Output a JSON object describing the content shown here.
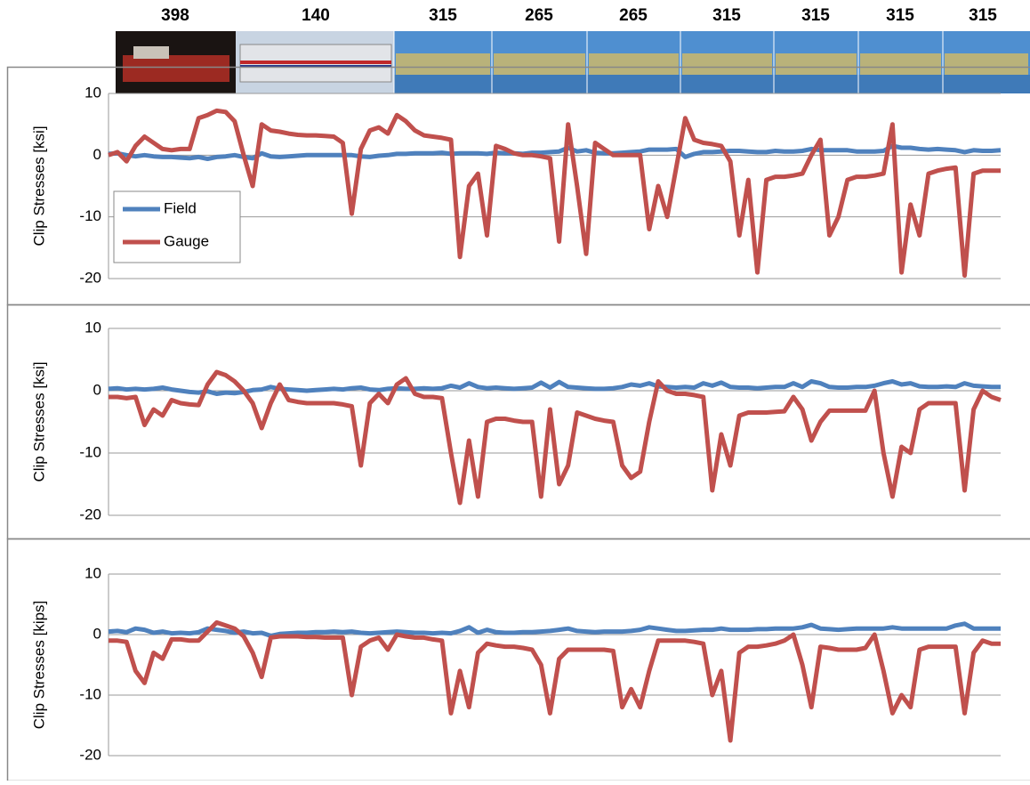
{
  "car_loads": [
    398,
    140,
    315,
    265,
    265,
    315,
    315,
    315,
    315
  ],
  "chart_data": [
    {
      "type": "line",
      "y_label": "Clip Stresses [ksi]",
      "ylim": [
        -20,
        10
      ],
      "yticks": [
        10,
        0,
        -10,
        -20
      ],
      "grid": true,
      "legend": "left",
      "series": [
        {
          "name": "Field",
          "color": "#4f81bd",
          "values": [
            0.2,
            0.3,
            0,
            -0.2,
            0,
            -0.2,
            -0.3,
            -0.3,
            -0.4,
            -0.5,
            -0.3,
            -0.6,
            -0.3,
            -0.2,
            0,
            -0.3,
            -0.5,
            0.3,
            -0.2,
            -0.3,
            -0.2,
            -0.1,
            0,
            0,
            0,
            0,
            0,
            0,
            -0.2,
            -0.3,
            -0.1,
            0,
            0.2,
            0.2,
            0.3,
            0.3,
            0.3,
            0.4,
            0.2,
            0.3,
            0.3,
            0.3,
            0.2,
            0.4,
            0.3,
            0.3,
            0.2,
            0.4,
            0.4,
            0.5,
            0.6,
            1.2,
            0.6,
            0.8,
            0.4,
            0.3,
            0.3,
            0.4,
            0.5,
            0.6,
            0.9,
            0.9,
            0.9,
            1,
            -0.3,
            0.2,
            0.5,
            0.5,
            0.6,
            0.7,
            0.7,
            0.6,
            0.5,
            0.5,
            0.7,
            0.6,
            0.6,
            0.7,
            1,
            0.8,
            0.8,
            0.8,
            0.8,
            0.6,
            0.6,
            0.6,
            0.7,
            1.5,
            1.2,
            1.2,
            1,
            0.9,
            1,
            0.9,
            0.8,
            0.5,
            0.8,
            0.7,
            0.7,
            0.8
          ]
        },
        {
          "name": "Gauge",
          "color": "#c0504d",
          "values": [
            0,
            0.5,
            -1,
            1.5,
            3,
            2,
            1,
            0.8,
            1,
            1,
            6,
            6.5,
            7.2,
            7,
            5.5,
            0,
            -5,
            5,
            4,
            3.8,
            3.5,
            3.3,
            3.2,
            3.2,
            3.1,
            3,
            2,
            -9.5,
            1,
            4,
            4.5,
            3.5,
            6.5,
            5.5,
            4,
            3.2,
            3,
            2.8,
            2.5,
            -16.5,
            -5,
            -3,
            -13,
            1.5,
            1,
            0.3,
            0,
            0,
            -0.2,
            -0.5,
            -14,
            5,
            -5,
            -16,
            2,
            1,
            0,
            0,
            0,
            0,
            -12,
            -5,
            -10,
            -2,
            6,
            2.5,
            2,
            1.8,
            1.5,
            -1,
            -13,
            -4,
            -19,
            -4,
            -3.5,
            -3.5,
            -3.3,
            -3,
            0,
            2.5,
            -13,
            -10,
            -4,
            -3.5,
            -3.5,
            -3.3,
            -3,
            5,
            -19,
            -8,
            -13,
            -3,
            -2.5,
            -2.2,
            -2,
            -19.5,
            -3,
            -2.5,
            -2.5,
            -2.5
          ]
        }
      ]
    },
    {
      "type": "line",
      "y_label": "Clip Stresses [ksi]",
      "ylim": [
        -20,
        10
      ],
      "yticks": [
        10,
        0,
        -10,
        -20
      ],
      "grid": true,
      "series": [
        {
          "name": "Field",
          "color": "#4f81bd",
          "values": [
            0.3,
            0.4,
            0.2,
            0.3,
            0.2,
            0.3,
            0.5,
            0.2,
            0,
            -0.2,
            -0.3,
            -0.1,
            -0.5,
            -0.3,
            -0.4,
            -0.2,
            0.1,
            0.2,
            0.6,
            0.3,
            0.2,
            0.1,
            0,
            0.1,
            0.2,
            0.3,
            0.2,
            0.4,
            0.5,
            0.2,
            0.1,
            0.3,
            0.4,
            0.3,
            0.3,
            0.4,
            0.3,
            0.4,
            0.8,
            0.5,
            1.2,
            0.6,
            0.4,
            0.5,
            0.4,
            0.3,
            0.4,
            0.5,
            1.3,
            0.5,
            1.4,
            0.6,
            0.5,
            0.4,
            0.3,
            0.3,
            0.4,
            0.6,
            1,
            0.8,
            1.2,
            0.7,
            0.6,
            0.5,
            0.6,
            0.5,
            1.2,
            0.8,
            1.3,
            0.6,
            0.5,
            0.5,
            0.4,
            0.5,
            0.6,
            0.6,
            1.2,
            0.6,
            1.5,
            1.2,
            0.6,
            0.5,
            0.5,
            0.6,
            0.6,
            0.8,
            1.2,
            1.5,
            1,
            1.2,
            0.7,
            0.6,
            0.6,
            0.7,
            0.6,
            1.2,
            0.8,
            0.7,
            0.6,
            0.6
          ]
        },
        {
          "name": "Gauge",
          "color": "#c0504d",
          "values": [
            -1,
            -1,
            -1.2,
            -1,
            -5.5,
            -3,
            -4,
            -1.5,
            -2,
            -2.2,
            -2.3,
            1,
            3,
            2.5,
            1.5,
            0,
            -2,
            -6,
            -2,
            1,
            -1.5,
            -1.8,
            -2,
            -2,
            -2,
            -2,
            -2.2,
            -2.5,
            -12,
            -2,
            -0.5,
            -2,
            1,
            2,
            -0.5,
            -1,
            -1,
            -1.2,
            -10,
            -18,
            -8,
            -17,
            -5,
            -4.5,
            -4.5,
            -4.8,
            -5,
            -5,
            -17,
            -3,
            -15,
            -12,
            -3.5,
            -4,
            -4.5,
            -4.8,
            -5,
            -12,
            -14,
            -13,
            -5,
            1.5,
            0,
            -0.5,
            -0.5,
            -0.7,
            -1,
            -16,
            -7,
            -12,
            -4,
            -3.5,
            -3.5,
            -3.5,
            -3.4,
            -3.3,
            -1,
            -3,
            -8,
            -5,
            -3.2,
            -3.2,
            -3.2,
            -3.2,
            -3.2,
            0,
            -10,
            -17,
            -9,
            -10,
            -3,
            -2,
            -2,
            -2,
            -2,
            -16,
            -3,
            0,
            -1,
            -1.5
          ]
        }
      ]
    },
    {
      "type": "line",
      "y_label": "Clip Stresses [kips]",
      "ylim": [
        -20,
        10
      ],
      "yticks": [
        10,
        0,
        -10,
        -20
      ],
      "grid": true,
      "series": [
        {
          "name": "Field",
          "color": "#4f81bd",
          "values": [
            0.5,
            0.6,
            0.4,
            1,
            0.8,
            0.3,
            0.5,
            0.2,
            0.3,
            0.2,
            0.4,
            1,
            0.8,
            0.6,
            0.3,
            0.5,
            0.2,
            0.3,
            -0.2,
            0.1,
            0.2,
            0.3,
            0.3,
            0.4,
            0.4,
            0.5,
            0.4,
            0.5,
            0.3,
            0.2,
            0.3,
            0.4,
            0.5,
            0.4,
            0.3,
            0.3,
            0.2,
            0.3,
            0.2,
            0.6,
            1.2,
            0.3,
            0.8,
            0.4,
            0.3,
            0.3,
            0.4,
            0.4,
            0.5,
            0.6,
            0.8,
            1,
            0.6,
            0.5,
            0.4,
            0.5,
            0.5,
            0.5,
            0.6,
            0.8,
            1.2,
            1,
            0.8,
            0.6,
            0.6,
            0.7,
            0.8,
            0.8,
            1,
            0.8,
            0.8,
            0.8,
            0.9,
            0.9,
            1,
            1,
            1,
            1.2,
            1.6,
            1,
            0.9,
            0.8,
            0.9,
            1,
            1,
            1,
            1,
            1.2,
            1,
            1,
            1,
            1,
            1,
            1,
            1.5,
            1.8,
            1,
            1,
            1,
            1
          ]
        },
        {
          "name": "Gauge",
          "color": "#c0504d",
          "values": [
            -1,
            -1,
            -1.2,
            -6,
            -8,
            -3,
            -4,
            -0.8,
            -0.8,
            -1,
            -1,
            0.5,
            2,
            1.5,
            1,
            -0.3,
            -3,
            -7,
            -0.5,
            -0.3,
            -0.3,
            -0.3,
            -0.4,
            -0.4,
            -0.5,
            -0.5,
            -0.5,
            -10,
            -2,
            -1,
            -0.5,
            -2.5,
            0,
            -0.3,
            -0.5,
            -0.5,
            -0.8,
            -1,
            -13,
            -6,
            -12,
            -3,
            -1.5,
            -1.8,
            -2,
            -2,
            -2.2,
            -2.5,
            -5,
            -13,
            -4,
            -2.5,
            -2.5,
            -2.5,
            -2.5,
            -2.5,
            -2.7,
            -12,
            -9,
            -12,
            -6,
            -1,
            -1,
            -1,
            -1,
            -1.2,
            -1.5,
            -10,
            -6,
            -17.5,
            -3,
            -2,
            -2,
            -1.8,
            -1.5,
            -1,
            0,
            -5,
            -12,
            -2,
            -2.2,
            -2.5,
            -2.5,
            -2.5,
            -2.2,
            0,
            -6,
            -13,
            -10,
            -12,
            -2.5,
            -2,
            -2,
            -2,
            -2,
            -13,
            -3,
            -1,
            -1.5,
            -1.5
          ]
        }
      ]
    }
  ]
}
